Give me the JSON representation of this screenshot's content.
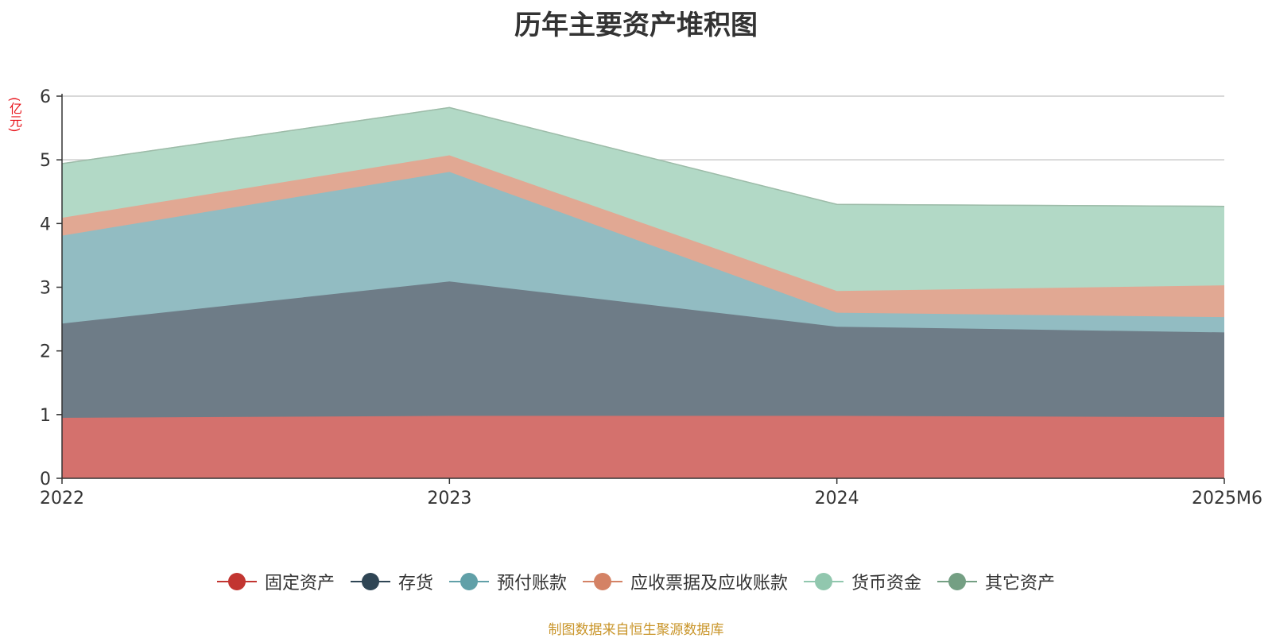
{
  "title": "历年主要资产堆积图",
  "unit_label": "(亿元)",
  "source": "制图数据来自恒生聚源数据库",
  "chart_data": {
    "type": "area",
    "stacked": true,
    "title": "历年主要资产堆积图",
    "ylabel": "(亿元)",
    "xlabel": "",
    "categories": [
      "2022",
      "2023",
      "2024",
      "2025M6"
    ],
    "ylim": [
      0,
      6
    ],
    "yticks": [
      0,
      1,
      2,
      3,
      4,
      5,
      6
    ],
    "grid": true,
    "legend_position": "bottom",
    "series": [
      {
        "name": "固定资产",
        "values": [
          0.95,
          0.98,
          0.98,
          0.96
        ],
        "color": "#c23531",
        "fill": "#d4716d"
      },
      {
        "name": "存货",
        "values": [
          1.48,
          2.11,
          1.4,
          1.33
        ],
        "color": "#2f4554",
        "fill": "#6e7c87"
      },
      {
        "name": "预付账款",
        "values": [
          1.38,
          1.72,
          0.22,
          0.24
        ],
        "color": "#61a0a8",
        "fill": "#92bcc2"
      },
      {
        "name": "应收票据及应收账款",
        "values": [
          0.28,
          0.26,
          0.34,
          0.5
        ],
        "color": "#d48265",
        "fill": "#e1a893"
      },
      {
        "name": "货币资金",
        "values": [
          0.85,
          0.75,
          1.36,
          1.24
        ],
        "color": "#91c7ae",
        "fill": "#b2d9c6"
      },
      {
        "name": "其它资产",
        "values": [
          0.0,
          0.0,
          0.0,
          0.0
        ],
        "color": "#749f83",
        "fill": "#9dbba8"
      }
    ]
  }
}
